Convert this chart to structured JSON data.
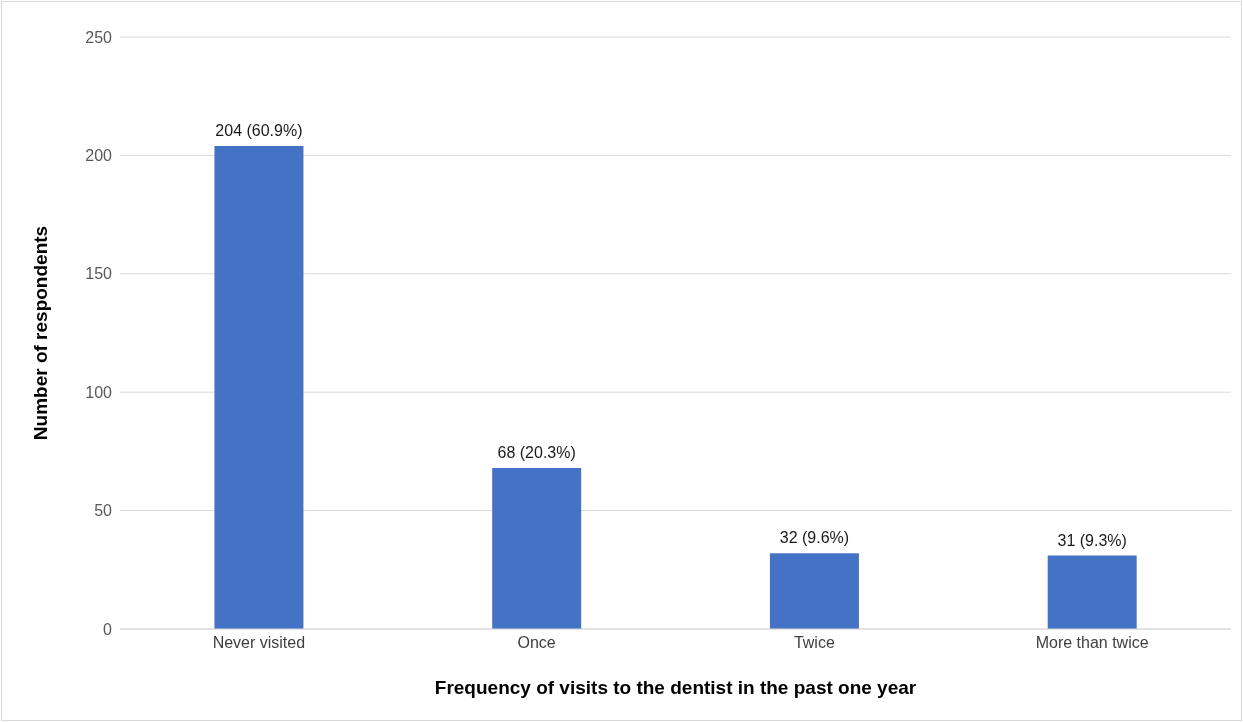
{
  "chart_data": {
    "type": "bar",
    "xlabel": "Frequency of visits to the dentist in the past one year",
    "ylabel": "Number of respondents",
    "categories": [
      "Never visited",
      "Once",
      "Twice",
      "More than twice"
    ],
    "values": [
      204,
      68,
      32,
      31
    ],
    "value_labels": [
      "204 (60.9%)",
      "68 (20.3%)",
      "32 (9.6%)",
      "31 (9.3%)"
    ],
    "color": "#4472c4",
    "ylim": [
      0,
      250
    ],
    "yticks": [
      0,
      50,
      100,
      150,
      200,
      250
    ],
    "grid": "y",
    "legend": false
  }
}
